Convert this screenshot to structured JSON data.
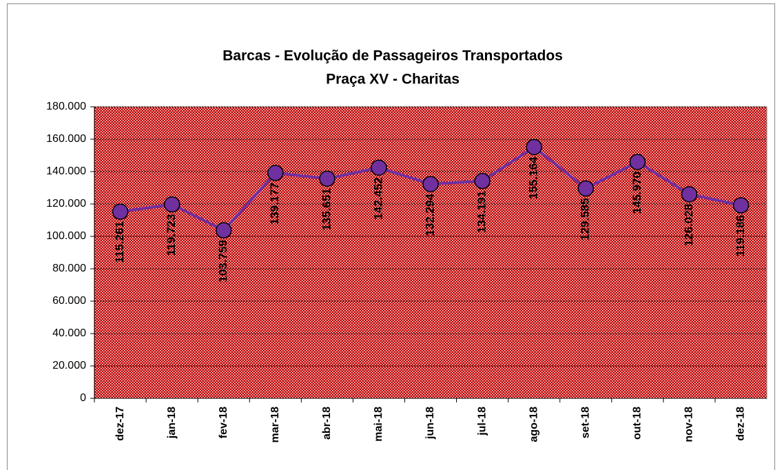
{
  "chart_data": {
    "type": "line",
    "title": "Barcas - Evolução de Passageiros Transportados",
    "subtitle": "Praça XV - Charitas",
    "categories": [
      "dez-17",
      "jan-18",
      "fev-18",
      "mar-18",
      "abr-18",
      "mai-18",
      "jun-18",
      "jul-18",
      "ago-18",
      "set-18",
      "out-18",
      "nov-18",
      "dez-18"
    ],
    "values": [
      115261,
      119723,
      103759,
      139177,
      135651,
      142452,
      132294,
      134191,
      155164,
      129585,
      145970,
      126028,
      119186
    ],
    "value_labels": [
      "115.261",
      "119.723",
      "103.759",
      "139.177",
      "135.651",
      "142.452",
      "132.294",
      "134.191",
      "155.164",
      "129.585",
      "145.970",
      "126.028",
      "119.186"
    ],
    "color": "#7030a0",
    "ylim": [
      0,
      180000
    ],
    "yticks": [
      0,
      {
        "value": 20000,
        "label": "20.000"
      },
      {
        "value": 40000,
        "label": "40.000"
      },
      {
        "value": 60000,
        "label": "60.000"
      },
      {
        "value": 80000,
        "label": "80.000"
      },
      {
        "value": 100000,
        "label": "100.000"
      },
      {
        "value": 120000,
        "label": "120.000"
      },
      {
        "value": 140000,
        "label": "140.000"
      },
      {
        "value": 160000,
        "label": "160.000"
      },
      {
        "value": 180000,
        "label": "180.000"
      }
    ],
    "grid": true
  }
}
